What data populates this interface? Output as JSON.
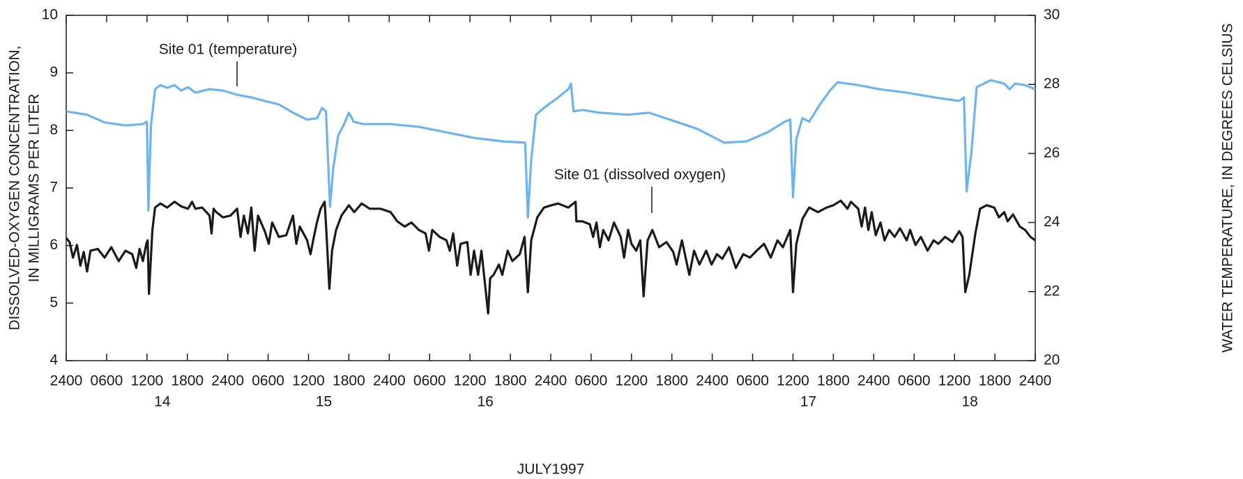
{
  "chart_data": {
    "type": "line",
    "ylabel": [
      "DISSOLVED-OXYGEN CONCENTRATION,",
      "IN MILLIGRAMS PER LITER"
    ],
    "y2label": "WATER TEMPERATURE, IN DEGREES CELSIUS",
    "xlabel": "JULY1997",
    "xlim": [
      0,
      144
    ],
    "xticks": [
      {
        "value": 0,
        "label": "2400"
      },
      {
        "value": 6,
        "label": "0600"
      },
      {
        "value": 12,
        "label": "1200"
      },
      {
        "value": 18,
        "label": "1800"
      },
      {
        "value": 24,
        "label": "2400"
      },
      {
        "value": 30,
        "label": "0600"
      },
      {
        "value": 36,
        "label": "1200"
      },
      {
        "value": 42,
        "label": "1800"
      },
      {
        "value": 48,
        "label": "2400"
      },
      {
        "value": 54,
        "label": "0600"
      },
      {
        "value": 60,
        "label": "1200"
      },
      {
        "value": 66,
        "label": "1800"
      },
      {
        "value": 72,
        "label": "2400"
      },
      {
        "value": 78,
        "label": "0600"
      },
      {
        "value": 84,
        "label": "1200"
      },
      {
        "value": 90,
        "label": "1800"
      },
      {
        "value": 96,
        "label": "2400"
      },
      {
        "value": 102,
        "label": "0600"
      },
      {
        "value": 108,
        "label": "1200"
      },
      {
        "value": 114,
        "label": "1800"
      },
      {
        "value": 120,
        "label": "2400"
      },
      {
        "value": 126,
        "label": "0600"
      },
      {
        "value": 132,
        "label": "1200"
      },
      {
        "value": 138,
        "label": "1800"
      },
      {
        "value": 144,
        "label": "2400"
      }
    ],
    "day_ticks": [
      {
        "value": 12,
        "label": "14"
      },
      {
        "value": 36,
        "label": "15"
      },
      {
        "value": 60,
        "label": "16"
      },
      {
        "value": 108,
        "label": "17"
      },
      {
        "value": 132,
        "label": "18"
      }
    ],
    "ylim": [
      4,
      10
    ],
    "yticks": [
      4,
      5,
      6,
      7,
      8,
      9,
      10
    ],
    "y2lim": [
      20,
      30
    ],
    "y2ticks": [
      20,
      22,
      24,
      26,
      28,
      30
    ],
    "series": [
      {
        "name": "Site 01 (temperature)",
        "color": "#6cb4ef",
        "axis": "y2",
        "x": [
          0,
          3.1,
          5.7,
          8.8,
          11.4,
          12.0,
          12.2,
          12.6,
          13.2,
          14.0,
          15.0,
          16.1,
          17.1,
          18.1,
          19.2,
          21.3,
          23.3,
          25.4,
          27.5,
          29.5,
          31.6,
          33.7,
          35.8,
          37.3,
          38.0,
          38.6,
          39.2,
          39.7,
          40.4,
          41.2,
          42.0,
          42.7,
          44.1,
          48.2,
          52.4,
          56.5,
          60.6,
          64.8,
          68.2,
          68.6,
          69.1,
          69.8,
          71.0,
          73.1,
          74.6,
          75.0,
          75.4,
          76.7,
          79.3,
          83.5,
          86.6,
          89.7,
          93.8,
          97.8,
          101.1,
          104.2,
          106.8,
          107.6,
          108.0,
          108.5,
          109.4,
          110.4,
          112.0,
          113.5,
          114.6,
          117.7,
          120.8,
          124.9,
          129.1,
          132.7,
          133.4,
          133.8,
          134.5,
          135.3,
          137.4,
          139.4,
          140.2,
          141.0,
          142.5,
          144
        ],
        "values": [
          27.22,
          27.12,
          26.9,
          26.81,
          26.85,
          26.92,
          24.35,
          26.81,
          27.86,
          27.98,
          27.9,
          27.98,
          27.82,
          27.92,
          27.76,
          27.86,
          27.82,
          27.7,
          27.62,
          27.52,
          27.42,
          27.18,
          26.98,
          27.02,
          27.32,
          27.22,
          24.46,
          25.6,
          26.51,
          26.81,
          27.18,
          26.92,
          26.85,
          26.85,
          26.77,
          26.61,
          26.45,
          26.35,
          26.31,
          24.15,
          25.81,
          27.12,
          27.32,
          27.62,
          27.86,
          28.02,
          27.22,
          27.26,
          27.18,
          27.12,
          27.18,
          26.98,
          26.71,
          26.31,
          26.35,
          26.61,
          26.92,
          26.98,
          24.74,
          26.41,
          27.02,
          26.92,
          27.42,
          27.82,
          28.06,
          27.98,
          27.86,
          27.76,
          27.62,
          27.52,
          27.62,
          24.9,
          26.01,
          27.92,
          28.12,
          28.02,
          27.86,
          28.02,
          27.98,
          27.86
        ]
      },
      {
        "name": "Site 01 (dissolved oxygen)",
        "color": "#1a1a1a",
        "axis": "y",
        "x": [
          0,
          0.5,
          1.0,
          1.6,
          2.1,
          2.6,
          3.1,
          3.6,
          4.7,
          5.7,
          6.7,
          7.8,
          8.8,
          9.8,
          10.4,
          10.9,
          11.4,
          11.9,
          12.1,
          12.3,
          12.8,
          13.2,
          14.0,
          15.0,
          16.1,
          17.1,
          18.1,
          18.7,
          19.2,
          20.2,
          21.3,
          21.6,
          21.9,
          22.3,
          23.3,
          24.4,
          25.4,
          25.9,
          26.4,
          27.0,
          27.5,
          28.0,
          28.5,
          29.5,
          30.1,
          30.6,
          31.6,
          32.7,
          33.7,
          34.2,
          34.7,
          35.8,
          36.3,
          36.8,
          37.3,
          37.8,
          38.4,
          38.7,
          39.1,
          39.5,
          40.1,
          40.9,
          42.0,
          42.8,
          43.9,
          45.1,
          46.7,
          48.2,
          49.2,
          50.3,
          51.3,
          52.4,
          53.4,
          53.9,
          54.4,
          55.5,
          56.5,
          57.0,
          57.5,
          58.1,
          58.6,
          59.6,
          60.1,
          60.6,
          61.2,
          61.7,
          62.7,
          63.0,
          63.5,
          64.3,
          64.8,
          65.6,
          66.3,
          67.4,
          68.1,
          68.6,
          69.1,
          70.0,
          71.0,
          72.1,
          73.1,
          74.6,
          75.7,
          75.8,
          76.7,
          77.8,
          78.3,
          78.8,
          79.3,
          79.8,
          80.6,
          81.4,
          82.4,
          82.9,
          83.5,
          84.0,
          84.7,
          85.3,
          85.8,
          86.4,
          87.1,
          88.1,
          89.2,
          90.2,
          90.7,
          91.5,
          92.6,
          93.3,
          94.1,
          95.1,
          95.9,
          96.7,
          97.5,
          98.5,
          99.5,
          100.6,
          101.6,
          102.6,
          103.7,
          104.7,
          105.7,
          106.5,
          107.6,
          108.0,
          108.5,
          109.4,
          110.4,
          111.7,
          113.0,
          114.0,
          115.1,
          116.1,
          116.6,
          117.7,
          118.2,
          118.7,
          119.2,
          119.7,
          120.3,
          121.0,
          121.6,
          122.3,
          123.1,
          123.9,
          124.9,
          125.4,
          126.2,
          127.0,
          128.0,
          128.9,
          129.6,
          130.6,
          131.7,
          132.7,
          133.2,
          133.6,
          134.2,
          135.1,
          135.8,
          136.8,
          137.9,
          138.6,
          139.4,
          139.9,
          140.7,
          141.7,
          142.5,
          143.3,
          144
        ],
        "values": [
          6.13,
          6.06,
          5.79,
          6.01,
          5.65,
          5.89,
          5.55,
          5.91,
          5.94,
          5.79,
          5.97,
          5.73,
          5.91,
          5.85,
          5.61,
          5.94,
          5.73,
          6.03,
          6.09,
          5.16,
          6.27,
          6.66,
          6.73,
          6.66,
          6.76,
          6.68,
          6.64,
          6.76,
          6.64,
          6.66,
          6.52,
          6.21,
          6.64,
          6.58,
          6.49,
          6.52,
          6.64,
          6.15,
          6.52,
          6.21,
          6.66,
          5.91,
          6.52,
          6.25,
          6.03,
          6.4,
          6.15,
          6.18,
          6.52,
          6.03,
          6.33,
          6.09,
          5.85,
          6.15,
          6.42,
          6.64,
          6.76,
          6.15,
          5.25,
          5.91,
          6.27,
          6.52,
          6.7,
          6.58,
          6.73,
          6.64,
          6.64,
          6.58,
          6.42,
          6.33,
          6.4,
          6.27,
          6.21,
          5.91,
          6.27,
          6.15,
          6.09,
          5.91,
          6.21,
          5.65,
          6.03,
          6.06,
          5.49,
          5.91,
          5.49,
          5.91,
          4.82,
          5.43,
          5.49,
          5.67,
          5.49,
          5.91,
          5.73,
          5.85,
          6.15,
          5.19,
          6.09,
          6.49,
          6.66,
          6.7,
          6.73,
          6.66,
          6.76,
          6.42,
          6.42,
          6.37,
          6.15,
          6.4,
          5.97,
          6.27,
          6.09,
          6.4,
          6.15,
          5.79,
          6.27,
          6.03,
          5.91,
          6.09,
          5.12,
          6.09,
          6.27,
          5.97,
          6.06,
          5.89,
          5.67,
          6.09,
          5.49,
          5.91,
          5.67,
          5.91,
          5.67,
          5.85,
          5.77,
          5.97,
          5.61,
          5.85,
          5.79,
          5.91,
          6.03,
          5.79,
          6.09,
          5.97,
          6.27,
          5.19,
          6.03,
          6.46,
          6.66,
          6.58,
          6.66,
          6.7,
          6.78,
          6.64,
          6.76,
          6.64,
          6.33,
          6.66,
          6.27,
          6.58,
          6.18,
          6.4,
          6.09,
          6.27,
          6.15,
          6.3,
          6.09,
          6.27,
          6.01,
          6.15,
          5.91,
          6.09,
          6.03,
          6.15,
          6.06,
          6.25,
          6.15,
          5.19,
          5.49,
          6.21,
          6.64,
          6.7,
          6.66,
          6.49,
          6.58,
          6.42,
          6.54,
          6.33,
          6.27,
          6.15,
          6.09
        ]
      }
    ]
  }
}
